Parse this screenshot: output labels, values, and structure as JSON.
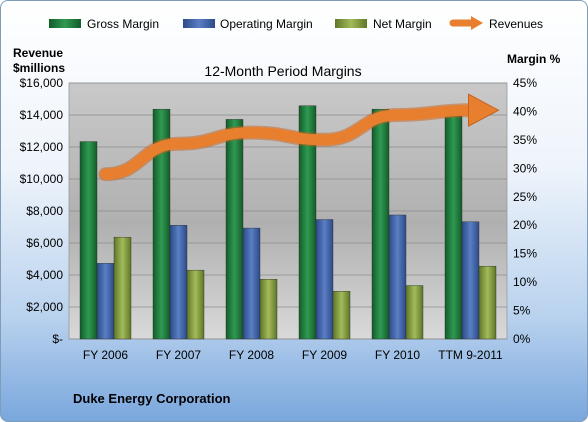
{
  "chart_data": {
    "type": "bar",
    "title": "12-Month Period Margins",
    "company": "Duke Energy Corporation",
    "left_axis_label_line1": "Revenue",
    "left_axis_label_line2": "$millions",
    "right_axis_label": "Margin %",
    "categories": [
      "FY 2006",
      "FY 2007",
      "FY 2008",
      "FY 2009",
      "FY 2010",
      "TTM 9-2011"
    ],
    "left_ticks": [
      "$-",
      "$2,000",
      "$4,000",
      "$6,000",
      "$8,000",
      "$10,000",
      "$12,000",
      "$14,000",
      "$16,000"
    ],
    "right_ticks": [
      "0%",
      "5%",
      "10%",
      "15%",
      "20%",
      "25%",
      "30%",
      "35%",
      "40%",
      "45%"
    ],
    "ylim_revenue": [
      0,
      16000
    ],
    "ylim_margin": [
      0,
      45
    ],
    "series": [
      {
        "name": "Gross Margin",
        "axis": "margin",
        "color": "#1e7a3c",
        "values": [
          34.7,
          40.4,
          38.6,
          41.0,
          40.4,
          39.2
        ]
      },
      {
        "name": "Operating Margin",
        "axis": "margin",
        "color": "#3f62a8",
        "values": [
          13.3,
          20.0,
          19.5,
          21.0,
          21.8,
          20.6
        ]
      },
      {
        "name": "Net Margin",
        "axis": "margin",
        "color": "#7f9a3a",
        "values": [
          17.9,
          12.1,
          10.5,
          8.4,
          9.4,
          12.8
        ]
      },
      {
        "name": "Revenues",
        "axis": "revenue",
        "color": "#e87f2f",
        "type": "line",
        "values": [
          10300,
          12200,
          12900,
          12450,
          14000,
          14300
        ]
      }
    ],
    "legend_position": "top"
  }
}
